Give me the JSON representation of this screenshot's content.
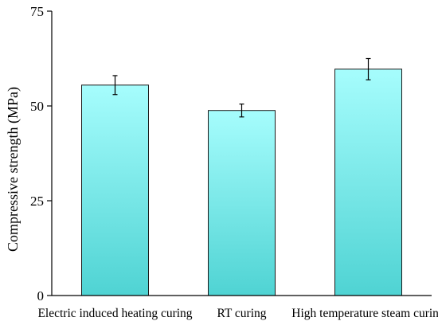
{
  "chart_data": {
    "type": "bar",
    "title": "",
    "xlabel": "",
    "ylabel": "Compressive strength (MPa)",
    "categories": [
      "Electric induced heating curing",
      "RT curing",
      "High temperature steam curing"
    ],
    "values": [
      55.5,
      48.8,
      59.7
    ],
    "errors": [
      2.5,
      1.7,
      2.8
    ],
    "ylim": [
      0,
      75
    ],
    "yticks": [
      0,
      25,
      50,
      75
    ],
    "grid": false,
    "legend": "none",
    "colors": {
      "bar_top": "#a6fdfd",
      "bar_bottom": "#4fd3d3",
      "bar_edge": "#1a1a1a",
      "axis": "#000000"
    }
  }
}
